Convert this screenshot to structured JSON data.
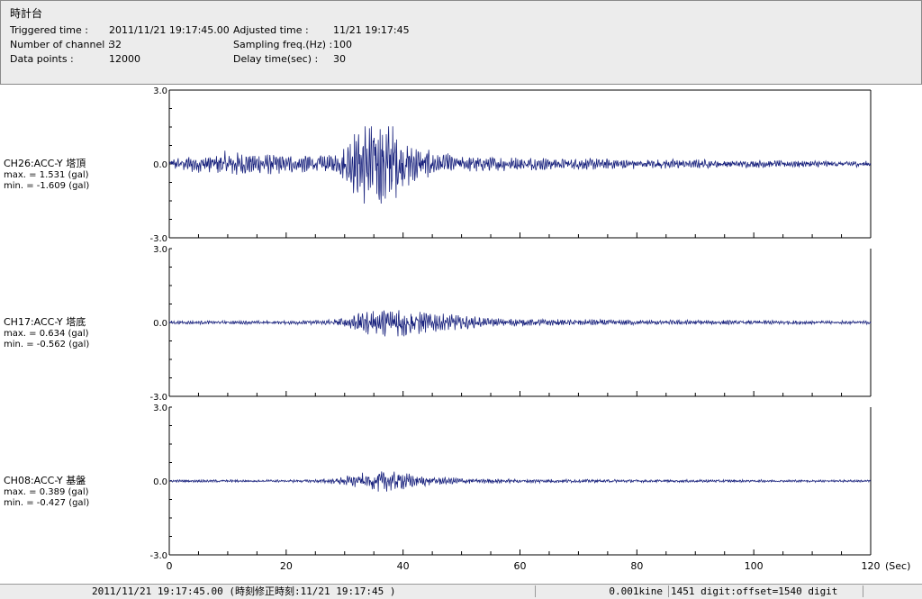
{
  "header": {
    "title": "時計台",
    "fields": [
      {
        "label": "Triggered time :",
        "value": "2011/11/21 19:17:45.00"
      },
      {
        "label": "Number of channel :",
        "value": "32"
      },
      {
        "label": "Data points :",
        "value": "12000"
      },
      {
        "label": "Adjusted time :",
        "value": "11/21 19:17:45"
      },
      {
        "label": "Sampling freq.(Hz) :",
        "value": "100"
      },
      {
        "label": "Delay time(sec) :",
        "value": "30"
      }
    ]
  },
  "chart_data": {
    "type": "line",
    "x_unit_label": "(Sec)",
    "xlim": [
      0,
      120
    ],
    "x_ticks": [
      "0",
      "20",
      "40",
      "60",
      "80",
      "100",
      "120"
    ],
    "line_color": "#1a237e",
    "series": [
      {
        "name": "CH26:ACC-Y 塔頂",
        "max_text": "max. = 1.531 (gal)",
        "min_text": "min. = -1.609 (gal)",
        "max": 1.531,
        "min": -1.609,
        "ylim": [
          -3.0,
          3.0
        ],
        "y_ticks": [
          "3.0",
          "0.0",
          "-3.0"
        ],
        "envelope": [
          [
            0,
            0.2
          ],
          [
            10,
            0.45
          ],
          [
            14,
            0.35
          ],
          [
            20,
            0.35
          ],
          [
            25,
            0.3
          ],
          [
            29,
            0.35
          ],
          [
            31,
            0.9
          ],
          [
            33,
            1.5
          ],
          [
            36,
            1.55
          ],
          [
            38,
            1.45
          ],
          [
            40,
            0.9
          ],
          [
            43,
            0.5
          ],
          [
            50,
            0.3
          ],
          [
            60,
            0.22
          ],
          [
            80,
            0.18
          ],
          [
            100,
            0.13
          ],
          [
            120,
            0.1
          ]
        ]
      },
      {
        "name": "CH17:ACC-Y 塔底",
        "max_text": "max. = 0.634 (gal)",
        "min_text": "min. = -0.562 (gal)",
        "max": 0.634,
        "min": -0.562,
        "ylim": [
          -3.0,
          3.0
        ],
        "y_ticks": [
          "3.0",
          "0.0",
          "-3.0"
        ],
        "envelope": [
          [
            0,
            0.06
          ],
          [
            20,
            0.06
          ],
          [
            27,
            0.1
          ],
          [
            30,
            0.2
          ],
          [
            33,
            0.38
          ],
          [
            37,
            0.5
          ],
          [
            40,
            0.6
          ],
          [
            43,
            0.4
          ],
          [
            48,
            0.28
          ],
          [
            55,
            0.15
          ],
          [
            62,
            0.12
          ],
          [
            80,
            0.09
          ],
          [
            120,
            0.06
          ]
        ]
      },
      {
        "name": "CH08:ACC-Y 基盤",
        "max_text": "max. = 0.389 (gal)",
        "min_text": "min. = -0.427 (gal)",
        "max": 0.389,
        "min": -0.427,
        "ylim": [
          -3.0,
          3.0
        ],
        "y_ticks": [
          "3.0",
          "0.0",
          "-3.0"
        ],
        "envelope": [
          [
            0,
            0.04
          ],
          [
            25,
            0.05
          ],
          [
            29,
            0.12
          ],
          [
            33,
            0.28
          ],
          [
            36,
            0.38
          ],
          [
            40,
            0.3
          ],
          [
            43,
            0.18
          ],
          [
            50,
            0.1
          ],
          [
            60,
            0.07
          ],
          [
            80,
            0.05
          ],
          [
            120,
            0.04
          ]
        ]
      }
    ]
  },
  "status_bar": {
    "time_text": "2011/11/21 19:17:45.00  (時刻修正時刻:11/21 19:17:45  )",
    "unit_text": "0.001kine",
    "digit_text": "1451 digit:offset=1540 digit"
  }
}
